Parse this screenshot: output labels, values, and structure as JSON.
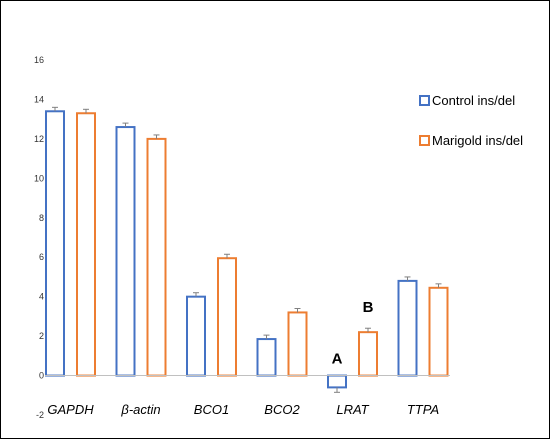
{
  "chart_data": {
    "type": "bar",
    "categories": [
      "GAPDH",
      "β-actin",
      "BCO1",
      "BCO2",
      "LRAT",
      "TTPA"
    ],
    "series": [
      {
        "name": "Control ins/del",
        "color": "#4472C4",
        "values": [
          13.4,
          12.6,
          4.0,
          1.85,
          -0.6,
          4.8
        ],
        "errors": [
          0.2,
          0.2,
          0.2,
          0.2,
          0.25,
          0.2
        ]
      },
      {
        "name": "Marigold ins/del",
        "color": "#ED7D31",
        "values": [
          13.3,
          12.0,
          5.95,
          3.2,
          2.2,
          4.45
        ],
        "errors": [
          0.2,
          0.2,
          0.2,
          0.2,
          0.2,
          0.2
        ]
      }
    ],
    "ylim": [
      -2,
      16
    ],
    "yticks": [
      -2,
      0,
      2,
      4,
      6,
      8,
      10,
      12,
      14,
      16
    ],
    "annotations": [
      {
        "text": "A",
        "category": "LRAT",
        "series": 0
      },
      {
        "text": "B",
        "category": "LRAT",
        "series": 1
      }
    ],
    "legend_position": "right",
    "grid": false,
    "errorbar_color": "#808080"
  }
}
